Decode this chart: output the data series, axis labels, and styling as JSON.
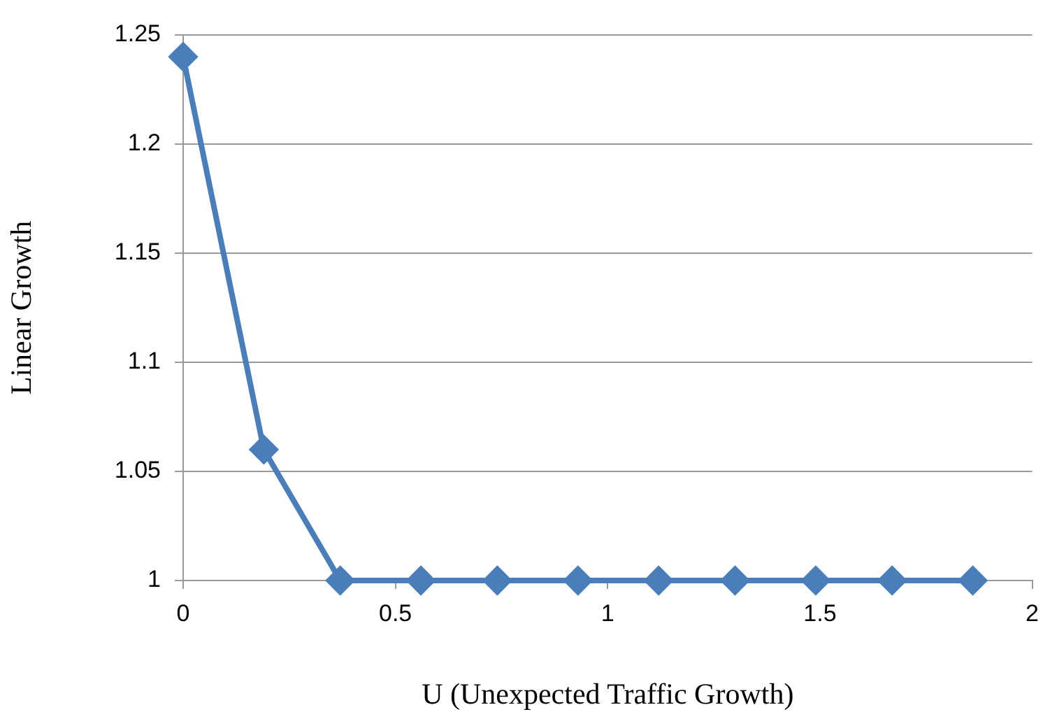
{
  "chart_data": {
    "type": "line",
    "xlabel": "U (Unexpected Traffic Growth)",
    "ylabel": "Linear Growth",
    "x": [
      0,
      0.19,
      0.37,
      0.56,
      0.74,
      0.93,
      1.12,
      1.3,
      1.49,
      1.67,
      1.86
    ],
    "series": [
      {
        "color": "#4a7ebb",
        "values": [
          1.24,
          1.06,
          1,
          1,
          1,
          1,
          1,
          1,
          1,
          1,
          1
        ]
      }
    ],
    "xlim": [
      0,
      2
    ],
    "xticks": [
      0,
      0.5,
      1,
      1.5,
      2
    ],
    "ylim": [
      1,
      1.25
    ],
    "yticks": [
      1,
      1.05,
      1.1,
      1.15,
      1.2,
      1.25
    ],
    "grid": "y",
    "legend": false,
    "marker": "diamond",
    "line_style": "solid"
  }
}
